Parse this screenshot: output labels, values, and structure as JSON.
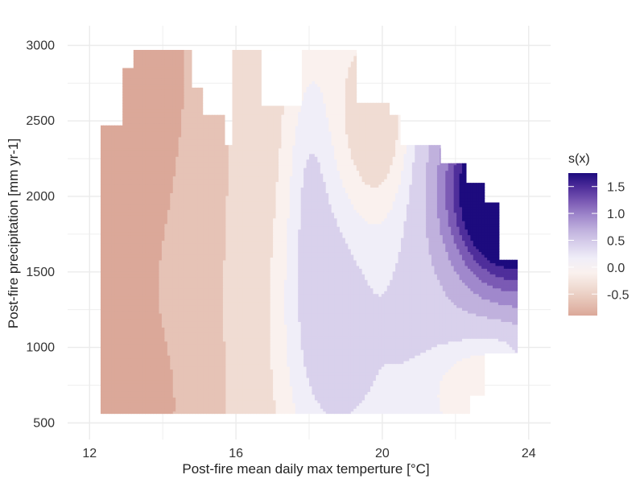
{
  "chart_data": {
    "type": "heatmap",
    "subtype": "filled-contour",
    "title": "",
    "xlabel": "Post-fire mean daily max temperture [°C]",
    "ylabel": "Post-fire precipitation [mm yr-1]",
    "xlim": [
      11.4,
      24.6
    ],
    "ylim": [
      390,
      3130
    ],
    "x_ticks": [
      12,
      16,
      20,
      24
    ],
    "y_ticks": [
      500,
      1000,
      1500,
      2000,
      2500,
      3000
    ],
    "grid": true,
    "grid_color": "#ebebeb",
    "legend": {
      "title": "s(x)",
      "position": "right",
      "range": [
        -0.9,
        1.75
      ],
      "ticks": [
        1.5,
        1.0,
        0.5,
        0.0,
        -0.5
      ],
      "tick_labels": [
        "1.5",
        "1.0",
        "0.5",
        "0.0",
        "-0.5"
      ],
      "colors": [
        "#dba899",
        "#e6c3b6",
        "#f0dcd3",
        "#faf1ee",
        "#f0eef8",
        "#d9d1ec",
        "#c0b1dd",
        "#a088cc",
        "#7b5ab4",
        "#4f2e9b",
        "#1d0b7e"
      ]
    },
    "levels": [
      -0.9,
      -0.65,
      -0.4,
      -0.15,
      0.0,
      0.15,
      0.4,
      0.65,
      0.9,
      1.15,
      1.4,
      1.75
    ],
    "level_colors": [
      "#dba899",
      "#e6c3b6",
      "#f0dcd3",
      "#faf1ee",
      "#f0eef8",
      "#d9d1ec",
      "#c0b1dd",
      "#a088cc",
      "#7b5ab4",
      "#4f2e9b",
      "#1d0b7e"
    ],
    "region": {
      "x": [
        12.3,
        12.3,
        12.9,
        12.9,
        13.2,
        13.2,
        14.8,
        14.8,
        15.1,
        15.1,
        14.8,
        14.8,
        15.7,
        15.7,
        15.9,
        15.9,
        17.8,
        17.8,
        19.3,
        19.3,
        20.2,
        20.2,
        20.5,
        20.5,
        20.8,
        20.8,
        21.6,
        21.6,
        21.9,
        21.9,
        22.3,
        22.3,
        22.8,
        22.8,
        23.2,
        23.2,
        23.4,
        23.4,
        23.7,
        23.7,
        22.8,
        22.8,
        22.4,
        22.4,
        22.1,
        22.1,
        12.3
      ],
      "y": [
        560,
        2470,
        2470,
        2850,
        2850,
        2970,
        2970,
        2720,
        2720,
        2340,
        2340,
        2540,
        2540,
        2340,
        2340,
        2970,
        2970,
        2970,
        2970,
        2620,
        2620,
        2540,
        2540,
        2340,
        2340,
        2340,
        2340,
        2220,
        2220,
        2220,
        2220,
        2090,
        2090,
        1960,
        1960,
        1580,
        1580,
        1580,
        1580,
        960,
        960,
        680,
        680,
        560,
        560,
        560,
        560
      ]
    },
    "hole": {
      "x": [
        16.7,
        17.8,
        17.8,
        16.7
      ],
      "y": [
        2600,
        2600,
        2970,
        2970
      ]
    },
    "peaks": [
      {
        "x": 12.3,
        "y": 2970,
        "amp": -0.35,
        "sx": 2.3,
        "sy": 1100
      },
      {
        "x": 12.3,
        "y": 620,
        "amp": -0.25,
        "sx": 2.0,
        "sy": 500
      },
      {
        "x": 22.6,
        "y": 680,
        "amp": -0.55,
        "sx": 1.4,
        "sy": 420
      },
      {
        "x": 23.6,
        "y": 1000,
        "amp": -0.25,
        "sx": 1.0,
        "sy": 300
      },
      {
        "x": 19.9,
        "y": 2500,
        "amp": -0.45,
        "sx": 1.0,
        "sy": 650
      },
      {
        "x": 18.3,
        "y": 1200,
        "amp": 0.35,
        "sx": 1.2,
        "sy": 900
      },
      {
        "x": 18.0,
        "y": 2200,
        "amp": 0.2,
        "sx": 0.6,
        "sy": 700
      },
      {
        "x": 23.4,
        "y": 2050,
        "amp": 2.4,
        "sx": 1.4,
        "sy": 520
      }
    ],
    "trend": {
      "base": -0.8,
      "slope_x": 0.12,
      "x0": 12.3
    }
  }
}
